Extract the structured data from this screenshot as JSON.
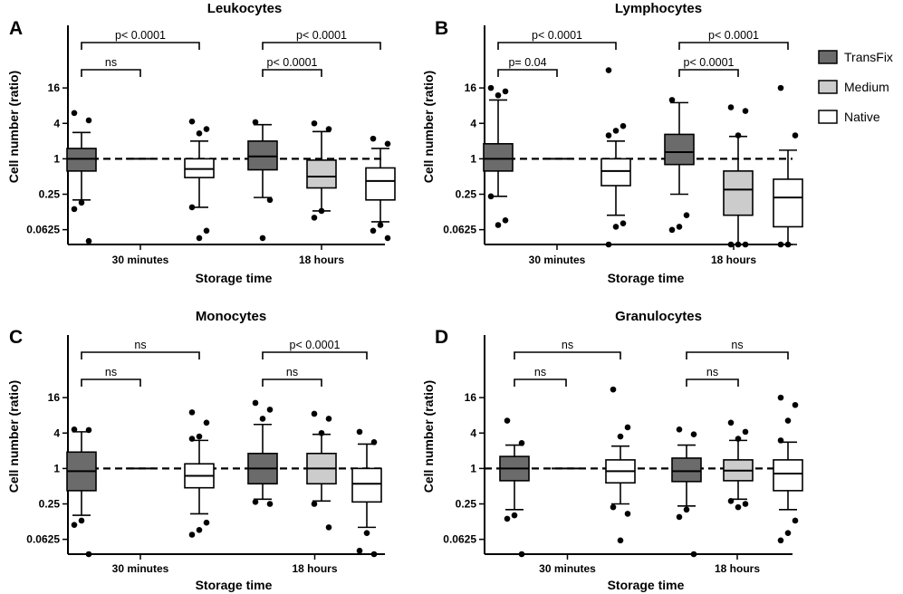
{
  "colors": {
    "transfix": "#6b6b6b",
    "medium": "#cccccc",
    "native": "#ffffff"
  },
  "legend": {
    "placement": "right",
    "items": [
      {
        "label": "TransFix",
        "color": "#6b6b6b"
      },
      {
        "label": "Medium",
        "color": "#cccccc"
      },
      {
        "label": "Native",
        "color": "#ffffff"
      }
    ]
  },
  "chart_data": [
    {
      "type": "box",
      "letter": "A",
      "title": "Leukocytes",
      "xlabel": "Storage time",
      "ylabel": "Cell number (ratio)",
      "yscale": "log2",
      "ylim": [
        0.035,
        64
      ],
      "yticks": [
        "16",
        "4",
        "1",
        "0.25",
        "0.0625"
      ],
      "reference_line": 1,
      "categories": [
        "30 minutes",
        "18 hours"
      ],
      "groups": [
        {
          "category": "30 minutes",
          "boxes": [
            {
              "series": "TransFix",
              "min": 0.2,
              "q1": 0.62,
              "median": 1.0,
              "q3": 1.5,
              "max": 2.8,
              "outliers": [
                6,
                4.5,
                0.18,
                0.14,
                0.04
              ]
            },
            {
              "series": "Medium",
              "median": 1.0,
              "collapsed": true
            },
            {
              "series": "Native",
              "min": 0.15,
              "q1": 0.48,
              "median": 0.67,
              "q3": 1.0,
              "max": 2.0,
              "outliers": [
                4.3,
                3.2,
                2.7,
                0.15,
                0.06,
                0.045
              ]
            }
          ]
        },
        {
          "category": "18 hours",
          "boxes": [
            {
              "series": "TransFix",
              "min": 0.22,
              "q1": 0.65,
              "median": 1.1,
              "q3": 2.0,
              "max": 3.8,
              "outliers": [
                4.2,
                0.2,
                0.045
              ]
            },
            {
              "series": "Medium",
              "min": 0.13,
              "q1": 0.32,
              "median": 0.5,
              "q3": 0.95,
              "max": 2.9,
              "outliers": [
                4.0,
                3.2,
                0.13,
                0.1
              ]
            },
            {
              "series": "Native",
              "min": 0.085,
              "q1": 0.2,
              "median": 0.42,
              "q3": 0.7,
              "max": 1.5,
              "outliers": [
                2.2,
                1.8,
                0.075,
                0.06,
                0.045
              ]
            }
          ]
        }
      ],
      "comparisons": [
        {
          "label": "p< 0.0001",
          "from": [
            0,
            0
          ],
          "to": [
            0,
            2
          ],
          "level": 2
        },
        {
          "label": "ns",
          "from": [
            0,
            0
          ],
          "to": [
            0,
            1
          ],
          "level": 1
        },
        {
          "label": "p< 0.0001",
          "from": [
            1,
            0
          ],
          "to": [
            1,
            2
          ],
          "level": 2
        },
        {
          "label": "p< 0.0001",
          "from": [
            1,
            0
          ],
          "to": [
            1,
            1
          ],
          "level": 1
        }
      ]
    },
    {
      "type": "box",
      "letter": "B",
      "title": "Lymphocytes",
      "xlabel": "Storage time",
      "ylabel": "Cell number (ratio)",
      "yscale": "log2",
      "ylim": [
        0.035,
        64
      ],
      "yticks": [
        "16",
        "4",
        "1",
        "0.25",
        "0.0625"
      ],
      "reference_line": 1,
      "categories": [
        "30 minutes",
        "18 hours"
      ],
      "groups": [
        {
          "category": "30 minutes",
          "boxes": [
            {
              "series": "TransFix",
              "min": 0.23,
              "q1": 0.62,
              "median": 1.0,
              "q3": 1.8,
              "max": 10,
              "outliers": [
                16,
                14,
                12,
                0.23,
                0.09,
                0.075
              ]
            },
            {
              "series": "Medium",
              "median": 1.0,
              "collapsed": true
            },
            {
              "series": "Native",
              "min": 0.11,
              "q1": 0.35,
              "median": 0.62,
              "q3": 1.0,
              "max": 2.0,
              "outliers": [
                32,
                3.6,
                3.0,
                2.5,
                0.08,
                0.07,
                0.035
              ]
            }
          ]
        },
        {
          "category": "18 hours",
          "boxes": [
            {
              "series": "TransFix",
              "min": 0.25,
              "q1": 0.8,
              "median": 1.3,
              "q3": 2.6,
              "max": 9,
              "outliers": [
                10,
                0.11,
                0.07,
                0.062
              ]
            },
            {
              "series": "Medium",
              "min": 0.035,
              "q1": 0.11,
              "median": 0.3,
              "q3": 0.62,
              "max": 2.4,
              "outliers": [
                7.5,
                6.5,
                2.5,
                0.035,
                0.035,
                0.035
              ]
            },
            {
              "series": "Native",
              "min": 0.035,
              "q1": 0.07,
              "median": 0.22,
              "q3": 0.45,
              "max": 1.4,
              "outliers": [
                16,
                2.5,
                0.035,
                0.035
              ]
            }
          ]
        }
      ],
      "comparisons": [
        {
          "label": "p< 0.0001",
          "from": [
            0,
            0
          ],
          "to": [
            0,
            2
          ],
          "level": 2
        },
        {
          "label": "p= 0.04",
          "from": [
            0,
            0
          ],
          "to": [
            0,
            1
          ],
          "level": 1
        },
        {
          "label": "p< 0.0001",
          "from": [
            1,
            0
          ],
          "to": [
            1,
            2
          ],
          "level": 2
        },
        {
          "label": "p< 0.0001",
          "from": [
            1,
            0
          ],
          "to": [
            1,
            1
          ],
          "level": 1
        }
      ]
    },
    {
      "type": "box",
      "letter": "C",
      "title": "Monocytes",
      "xlabel": "Storage time",
      "ylabel": "Cell number (ratio)",
      "yscale": "log2",
      "ylim": [
        0.035,
        64
      ],
      "yticks": [
        "16",
        "4",
        "1",
        "0.25",
        "0.0625"
      ],
      "reference_line": 1,
      "categories": [
        "30 minutes",
        "18 hours"
      ],
      "groups": [
        {
          "category": "30 minutes",
          "boxes": [
            {
              "series": "TransFix",
              "min": 0.16,
              "q1": 0.42,
              "median": 0.9,
              "q3": 1.9,
              "max": 4.2,
              "outliers": [
                4.6,
                4.5,
                0.13,
                0.11,
                0.035
              ]
            },
            {
              "series": "Medium",
              "median": 1.0,
              "collapsed": true
            },
            {
              "series": "Native",
              "min": 0.17,
              "q1": 0.47,
              "median": 0.75,
              "q3": 1.2,
              "max": 3.0,
              "outliers": [
                9,
                6,
                3.5,
                3.2,
                0.12,
                0.09,
                0.075
              ]
            }
          ]
        },
        {
          "category": "18 hours",
          "boxes": [
            {
              "series": "TransFix",
              "min": 0.3,
              "q1": 0.55,
              "median": 1.0,
              "q3": 1.8,
              "max": 5.6,
              "outliers": [
                13,
                10,
                7,
                0.27,
                0.25
              ]
            },
            {
              "series": "Medium",
              "min": 0.28,
              "q1": 0.55,
              "median": 1.0,
              "q3": 1.8,
              "max": 3.8,
              "outliers": [
                8.5,
                7,
                4,
                0.25,
                0.1
              ]
            },
            {
              "series": "Native",
              "min": 0.1,
              "q1": 0.27,
              "median": 0.55,
              "q3": 1.0,
              "max": 2.6,
              "outliers": [
                4.2,
                2.8,
                0.08,
                0.04,
                0.035
              ]
            }
          ]
        }
      ],
      "comparisons": [
        {
          "label": "ns",
          "from": [
            0,
            0
          ],
          "to": [
            0,
            2
          ],
          "level": 2
        },
        {
          "label": "ns",
          "from": [
            0,
            0
          ],
          "to": [
            0,
            1
          ],
          "level": 1
        },
        {
          "label": "p< 0.0001",
          "from": [
            1,
            0
          ],
          "to": [
            1,
            2
          ],
          "level": 2
        },
        {
          "label": "ns",
          "from": [
            1,
            0
          ],
          "to": [
            1,
            1
          ],
          "level": 1
        }
      ]
    },
    {
      "type": "box",
      "letter": "D",
      "title": "Granulocytes",
      "xlabel": "Storage time",
      "ylabel": "Cell number (ratio)",
      "yscale": "log2",
      "ylim": [
        0.035,
        64
      ],
      "yticks": [
        "16",
        "4",
        "1",
        "0.25",
        "0.0625"
      ],
      "reference_line": 1,
      "categories": [
        "30 minutes",
        "18 hours"
      ],
      "groups": [
        {
          "category": "30 minutes",
          "boxes": [
            {
              "series": "TransFix",
              "min": 0.2,
              "q1": 0.62,
              "median": 1.0,
              "q3": 1.6,
              "max": 2.5,
              "outliers": [
                6.5,
                2.7,
                0.16,
                0.14,
                0.035
              ]
            },
            {
              "series": "Medium",
              "median": 1.0,
              "collapsed": true
            },
            {
              "series": "Native",
              "min": 0.25,
              "q1": 0.57,
              "median": 0.9,
              "q3": 1.4,
              "max": 2.4,
              "outliers": [
                22,
                5,
                3.5,
                0.22,
                0.17,
                0.06
              ]
            },
            {
              "series": "_pad",
              "hidden": true
            }
          ]
        },
        {
          "category": "18 hours",
          "boxes": [
            {
              "series": "TransFix",
              "min": 0.23,
              "q1": 0.6,
              "median": 0.9,
              "q3": 1.5,
              "max": 2.5,
              "outliers": [
                4.6,
                3.8,
                0.2,
                0.15,
                0.035
              ]
            },
            {
              "series": "Medium",
              "min": 0.3,
              "q1": 0.62,
              "median": 0.92,
              "q3": 1.4,
              "max": 3.0,
              "outliers": [
                6,
                4.2,
                3.2,
                0.28,
                0.25,
                0.22
              ]
            },
            {
              "series": "Native",
              "min": 0.2,
              "q1": 0.42,
              "median": 0.82,
              "q3": 1.4,
              "max": 2.8,
              "outliers": [
                16,
                12,
                6.5,
                3.0,
                0.13,
                0.08,
                0.06
              ]
            }
          ]
        }
      ],
      "comparisons": [
        {
          "label": "ns",
          "from": [
            0,
            0
          ],
          "to": [
            0,
            2
          ],
          "level": 2
        },
        {
          "label": "ns",
          "from": [
            0,
            0
          ],
          "to": [
            0,
            1
          ],
          "level": 1
        },
        {
          "label": "ns",
          "from": [
            1,
            0
          ],
          "to": [
            1,
            2
          ],
          "level": 2
        },
        {
          "label": "ns",
          "from": [
            1,
            0
          ],
          "to": [
            1,
            1
          ],
          "level": 1
        }
      ]
    }
  ]
}
